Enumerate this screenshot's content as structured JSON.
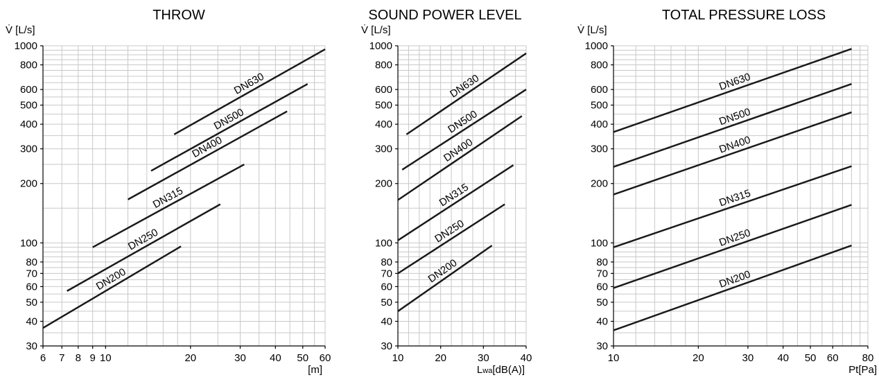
{
  "chart_data": [
    {
      "type": "line",
      "title": "THROW",
      "ylabel": "V̇ [L/s]",
      "xlabel": "[m]",
      "x_scale": "log",
      "y_scale": "log",
      "xlim": [
        6,
        60
      ],
      "ylim": [
        30,
        1000
      ],
      "grid": true,
      "x_ticks": [
        "6",
        "7",
        "8",
        "9",
        "10",
        "20",
        "30",
        "40",
        "50",
        "60"
      ],
      "y_ticks": [
        "30",
        "40",
        "50",
        "60",
        "70",
        "80",
        "100",
        "200",
        "300",
        "400",
        "500",
        "600",
        "800",
        "1000"
      ],
      "series": [
        {
          "name": "DN630",
          "x": [
            17.5,
            60
          ],
          "y": [
            355,
            960
          ]
        },
        {
          "name": "DN500",
          "x": [
            14.5,
            52
          ],
          "y": [
            232,
            640
          ]
        },
        {
          "name": "DN400",
          "x": [
            12,
            44
          ],
          "y": [
            166,
            465
          ]
        },
        {
          "name": "DN315",
          "x": [
            9,
            31
          ],
          "y": [
            95,
            250
          ]
        },
        {
          "name": "DN250",
          "x": [
            7.3,
            25.5
          ],
          "y": [
            57,
            157
          ]
        },
        {
          "name": "DN200",
          "x": [
            6,
            18.5
          ],
          "y": [
            37,
            96
          ]
        }
      ]
    },
    {
      "type": "line",
      "title": "SOUND POWER LEVEL",
      "ylabel": "V̇ [L/s]",
      "xlabel_main": "L",
      "xlabel_sub": "wa",
      "xlabel_rest": "[dB(A)]",
      "x_scale": "linear",
      "y_scale": "log",
      "xlim": [
        10,
        40
      ],
      "ylim": [
        30,
        1000
      ],
      "grid": true,
      "x_ticks": [
        "10",
        "20",
        "30",
        "40"
      ],
      "y_ticks": [
        "30",
        "40",
        "50",
        "60",
        "70",
        "80",
        "100",
        "200",
        "300",
        "400",
        "500",
        "600",
        "800",
        "1000"
      ],
      "series": [
        {
          "name": "DN630",
          "x": [
            12,
            40
          ],
          "y": [
            355,
            915
          ]
        },
        {
          "name": "DN500",
          "x": [
            11,
            40
          ],
          "y": [
            235,
            600
          ]
        },
        {
          "name": "DN400",
          "x": [
            10,
            39
          ],
          "y": [
            165,
            440
          ]
        },
        {
          "name": "DN315",
          "x": [
            10,
            37
          ],
          "y": [
            103,
            248
          ]
        },
        {
          "name": "DN250",
          "x": [
            10,
            35
          ],
          "y": [
            70,
            157
          ]
        },
        {
          "name": "DN200",
          "x": [
            10,
            32
          ],
          "y": [
            45,
            97
          ]
        }
      ]
    },
    {
      "type": "line",
      "title": "TOTAL PRESSURE LOSS",
      "ylabel": "V̇ [L/s]",
      "xlabel": "Pt[Pa]",
      "x_scale": "log",
      "y_scale": "log",
      "xlim": [
        10,
        80
      ],
      "ylim": [
        30,
        1000
      ],
      "grid": true,
      "x_ticks": [
        "10",
        "20",
        "30",
        "40",
        "50",
        "60",
        "80"
      ],
      "y_ticks": [
        "30",
        "40",
        "50",
        "60",
        "70",
        "80",
        "100",
        "200",
        "300",
        "400",
        "500",
        "600",
        "800",
        "1000"
      ],
      "series": [
        {
          "name": "DN630",
          "x": [
            10,
            70
          ],
          "y": [
            365,
            965
          ]
        },
        {
          "name": "DN500",
          "x": [
            10,
            70
          ],
          "y": [
            243,
            640
          ]
        },
        {
          "name": "DN400",
          "x": [
            10,
            70
          ],
          "y": [
            176,
            460
          ]
        },
        {
          "name": "DN315",
          "x": [
            10,
            70
          ],
          "y": [
            95,
            245
          ]
        },
        {
          "name": "DN250",
          "x": [
            10,
            70
          ],
          "y": [
            59,
            156
          ]
        },
        {
          "name": "DN200",
          "x": [
            10,
            70
          ],
          "y": [
            36,
            97
          ]
        }
      ]
    }
  ]
}
